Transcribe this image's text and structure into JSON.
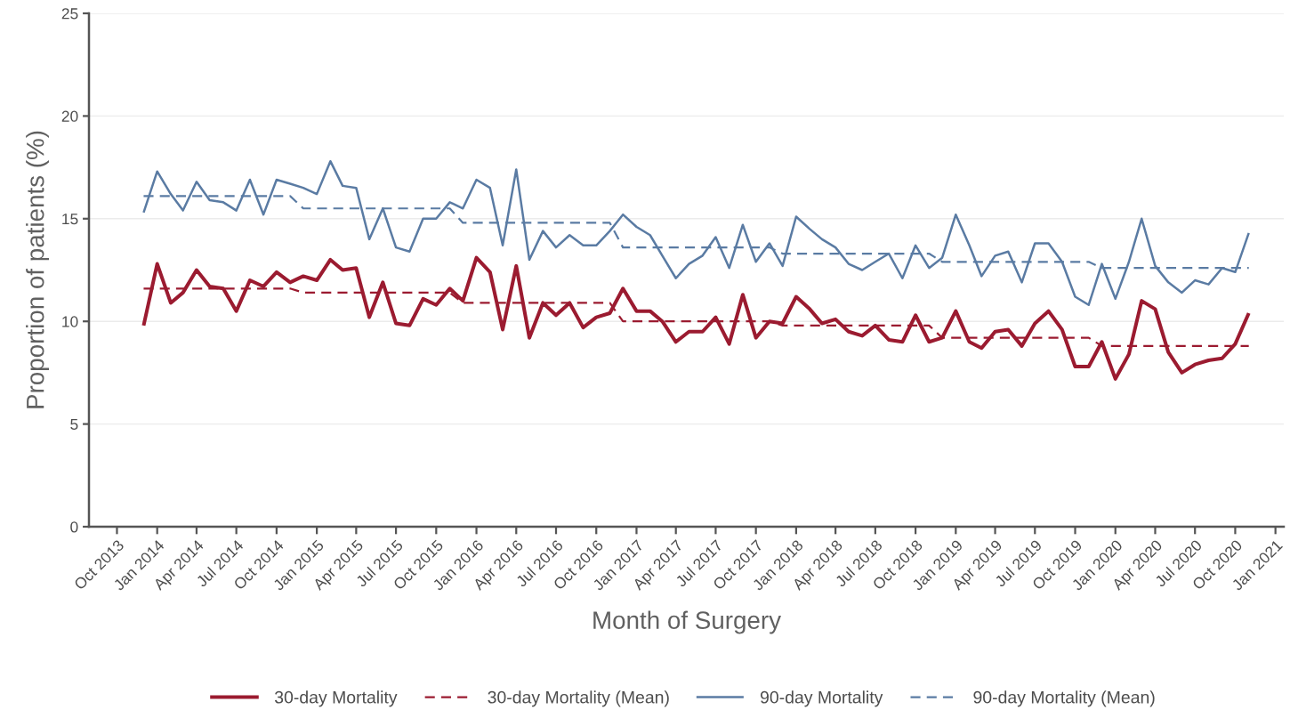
{
  "chart_data": {
    "type": "line",
    "xlabel": "Month of Surgery",
    "ylabel": "Proportion of patients (%)",
    "x": [
      "2013-12",
      "2014-01",
      "2014-02",
      "2014-03",
      "2014-04",
      "2014-05",
      "2014-06",
      "2014-07",
      "2014-08",
      "2014-09",
      "2014-10",
      "2014-11",
      "2014-12",
      "2015-01",
      "2015-02",
      "2015-03",
      "2015-04",
      "2015-05",
      "2015-06",
      "2015-07",
      "2015-08",
      "2015-09",
      "2015-10",
      "2015-11",
      "2015-12",
      "2016-01",
      "2016-02",
      "2016-03",
      "2016-04",
      "2016-05",
      "2016-06",
      "2016-07",
      "2016-08",
      "2016-09",
      "2016-10",
      "2016-11",
      "2016-12",
      "2017-01",
      "2017-02",
      "2017-03",
      "2017-04",
      "2017-05",
      "2017-06",
      "2017-07",
      "2017-08",
      "2017-09",
      "2017-10",
      "2017-11",
      "2017-12",
      "2018-01",
      "2018-02",
      "2018-03",
      "2018-04",
      "2018-05",
      "2018-06",
      "2018-07",
      "2018-08",
      "2018-09",
      "2018-10",
      "2018-11",
      "2018-12",
      "2019-01",
      "2019-02",
      "2019-03",
      "2019-04",
      "2019-05",
      "2019-06",
      "2019-07",
      "2019-08",
      "2019-09",
      "2019-10",
      "2019-11",
      "2019-12",
      "2020-01",
      "2020-02",
      "2020-03",
      "2020-04",
      "2020-05",
      "2020-06",
      "2020-07",
      "2020-08",
      "2020-09",
      "2020-10",
      "2020-11"
    ],
    "series": [
      {
        "name": "30-day Mortality",
        "color": "#9b1b30",
        "line_style": "solid",
        "values": [
          9.8,
          12.8,
          10.9,
          11.4,
          12.5,
          11.7,
          11.6,
          10.5,
          12.0,
          11.7,
          12.4,
          11.9,
          12.2,
          12.0,
          13.0,
          12.5,
          12.6,
          10.2,
          11.9,
          9.9,
          9.8,
          11.1,
          10.8,
          11.6,
          11.0,
          13.1,
          12.4,
          9.6,
          12.7,
          9.2,
          10.9,
          10.3,
          10.9,
          9.7,
          10.2,
          10.4,
          11.6,
          10.5,
          10.5,
          10.0,
          9.0,
          9.5,
          9.5,
          10.2,
          8.9,
          11.3,
          9.2,
          10.0,
          9.9,
          11.2,
          10.6,
          9.9,
          10.1,
          9.5,
          9.3,
          9.8,
          9.1,
          9.0,
          10.3,
          9.0,
          9.2,
          10.5,
          9.0,
          8.7,
          9.5,
          9.6,
          8.8,
          9.9,
          10.5,
          9.6,
          7.8,
          7.8,
          9.0,
          7.2,
          8.4,
          11.0,
          10.6,
          8.5,
          7.5,
          7.9,
          8.1,
          8.2,
          8.9,
          10.4
        ]
      },
      {
        "name": "30-day Mortality (Mean)",
        "color": "#9b1b30",
        "line_style": "dashed",
        "values": [
          11.6,
          11.6,
          11.6,
          11.6,
          11.6,
          11.6,
          11.6,
          11.6,
          11.6,
          11.6,
          11.6,
          11.6,
          11.4,
          11.4,
          11.4,
          11.4,
          11.4,
          11.4,
          11.4,
          11.4,
          11.4,
          11.4,
          11.4,
          11.4,
          10.9,
          10.9,
          10.9,
          10.9,
          10.9,
          10.9,
          10.9,
          10.9,
          10.9,
          10.9,
          10.9,
          10.9,
          10.0,
          10.0,
          10.0,
          10.0,
          10.0,
          10.0,
          10.0,
          10.0,
          10.0,
          10.0,
          10.0,
          10.0,
          9.8,
          9.8,
          9.8,
          9.8,
          9.8,
          9.8,
          9.8,
          9.8,
          9.8,
          9.8,
          9.8,
          9.8,
          9.2,
          9.2,
          9.2,
          9.2,
          9.2,
          9.2,
          9.2,
          9.2,
          9.2,
          9.2,
          9.2,
          9.2,
          8.8,
          8.8,
          8.8,
          8.8,
          8.8,
          8.8,
          8.8,
          8.8,
          8.8,
          8.8,
          8.8,
          8.8
        ]
      },
      {
        "name": "90-day Mortality",
        "color": "#5a7ba3",
        "line_style": "solid",
        "values": [
          15.3,
          17.3,
          16.2,
          15.4,
          16.8,
          15.9,
          15.8,
          15.4,
          16.9,
          15.2,
          16.9,
          16.7,
          16.5,
          16.2,
          17.8,
          16.6,
          16.5,
          14.0,
          15.5,
          13.6,
          13.4,
          15.0,
          15.0,
          15.8,
          15.5,
          16.9,
          16.5,
          13.7,
          17.4,
          13.0,
          14.4,
          13.6,
          14.2,
          13.7,
          13.7,
          14.4,
          15.2,
          14.6,
          14.2,
          13.2,
          12.1,
          12.8,
          13.2,
          14.1,
          12.6,
          14.7,
          12.9,
          13.8,
          12.7,
          15.1,
          14.5,
          14.0,
          13.6,
          12.8,
          12.5,
          12.9,
          13.3,
          12.1,
          13.7,
          12.6,
          13.1,
          15.2,
          13.7,
          12.2,
          13.2,
          13.4,
          11.9,
          13.8,
          13.8,
          12.9,
          11.2,
          10.8,
          12.8,
          11.1,
          12.9,
          15.0,
          12.7,
          11.9,
          11.4,
          12.0,
          11.8,
          12.6,
          12.4,
          14.3
        ]
      },
      {
        "name": "90-day Mortality (Mean)",
        "color": "#5a7ba3",
        "line_style": "dashed",
        "values": [
          16.1,
          16.1,
          16.1,
          16.1,
          16.1,
          16.1,
          16.1,
          16.1,
          16.1,
          16.1,
          16.1,
          16.1,
          15.5,
          15.5,
          15.5,
          15.5,
          15.5,
          15.5,
          15.5,
          15.5,
          15.5,
          15.5,
          15.5,
          15.5,
          14.8,
          14.8,
          14.8,
          14.8,
          14.8,
          14.8,
          14.8,
          14.8,
          14.8,
          14.8,
          14.8,
          14.8,
          13.6,
          13.6,
          13.6,
          13.6,
          13.6,
          13.6,
          13.6,
          13.6,
          13.6,
          13.6,
          13.6,
          13.6,
          13.3,
          13.3,
          13.3,
          13.3,
          13.3,
          13.3,
          13.3,
          13.3,
          13.3,
          13.3,
          13.3,
          13.3,
          12.9,
          12.9,
          12.9,
          12.9,
          12.9,
          12.9,
          12.9,
          12.9,
          12.9,
          12.9,
          12.9,
          12.9,
          12.6,
          12.6,
          12.6,
          12.6,
          12.6,
          12.6,
          12.6,
          12.6,
          12.6,
          12.6,
          12.6,
          12.6
        ]
      }
    ],
    "xlim": [
      "2013-07-29",
      "2021-01-20"
    ],
    "ylim": [
      0,
      25
    ],
    "xticks": [
      {
        "value": "2013-10",
        "label": "Oct 2013"
      },
      {
        "value": "2014-01",
        "label": "Jan 2014"
      },
      {
        "value": "2014-04",
        "label": "Apr 2014"
      },
      {
        "value": "2014-07",
        "label": "Jul 2014"
      },
      {
        "value": "2014-10",
        "label": "Oct 2014"
      },
      {
        "value": "2015-01",
        "label": "Jan 2015"
      },
      {
        "value": "2015-04",
        "label": "Apr 2015"
      },
      {
        "value": "2015-07",
        "label": "Jul 2015"
      },
      {
        "value": "2015-10",
        "label": "Oct 2015"
      },
      {
        "value": "2016-01",
        "label": "Jan 2016"
      },
      {
        "value": "2016-04",
        "label": "Apr 2016"
      },
      {
        "value": "2016-07",
        "label": "Jul 2016"
      },
      {
        "value": "2016-10",
        "label": "Oct 2016"
      },
      {
        "value": "2017-01",
        "label": "Jan 2017"
      },
      {
        "value": "2017-04",
        "label": "Apr 2017"
      },
      {
        "value": "2017-07",
        "label": "Jul 2017"
      },
      {
        "value": "2017-10",
        "label": "Oct 2017"
      },
      {
        "value": "2018-01",
        "label": "Jan 2018"
      },
      {
        "value": "2018-04",
        "label": "Apr 2018"
      },
      {
        "value": "2018-07",
        "label": "Jul 2018"
      },
      {
        "value": "2018-10",
        "label": "Oct 2018"
      },
      {
        "value": "2019-01",
        "label": "Jan 2019"
      },
      {
        "value": "2019-04",
        "label": "Apr 2019"
      },
      {
        "value": "2019-07",
        "label": "Jul 2019"
      },
      {
        "value": "2019-10",
        "label": "Oct 2019"
      },
      {
        "value": "2020-01",
        "label": "Jan 2020"
      },
      {
        "value": "2020-04",
        "label": "Apr 2020"
      },
      {
        "value": "2020-07",
        "label": "Jul 2020"
      },
      {
        "value": "2020-10",
        "label": "Oct 2020"
      },
      {
        "value": "2021-01",
        "label": "Jan 2021"
      }
    ],
    "yticks": [
      0,
      5,
      10,
      15,
      20,
      25
    ],
    "grid": "y",
    "legend": "bottom"
  }
}
